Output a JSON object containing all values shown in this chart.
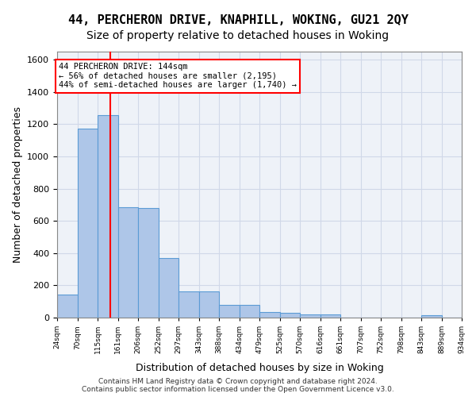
{
  "title_line1": "44, PERCHERON DRIVE, KNAPHILL, WOKING, GU21 2QY",
  "title_line2": "Size of property relative to detached houses in Woking",
  "xlabel": "Distribution of detached houses by size in Woking",
  "ylabel": "Number of detached properties",
  "footer_line1": "Contains HM Land Registry data © Crown copyright and database right 2024.",
  "footer_line2": "Contains public sector information licensed under the Open Government Licence v3.0.",
  "bar_edges": [
    24,
    70,
    115,
    161,
    206,
    252,
    297,
    343,
    388,
    434,
    479,
    525,
    570,
    616,
    661,
    707,
    752,
    798,
    843,
    889,
    934
  ],
  "bar_heights": [
    145,
    1170,
    1255,
    685,
    680,
    370,
    165,
    165,
    80,
    80,
    35,
    30,
    20,
    20,
    0,
    0,
    0,
    0,
    15,
    0
  ],
  "bar_color": "#aec6e8",
  "bar_edge_color": "#5b9bd5",
  "grid_color": "#d0d8e8",
  "bg_color": "#eef2f8",
  "vline_x": 144,
  "vline_color": "red",
  "annotation_line1": "44 PERCHERON DRIVE: 144sqm",
  "annotation_line2": "← 56% of detached houses are smaller (2,195)",
  "annotation_line3": "44% of semi-detached houses are larger (1,740) →",
  "annotation_box_color": "red",
  "ylim": [
    0,
    1650
  ],
  "yticks": [
    0,
    200,
    400,
    600,
    800,
    1000,
    1200,
    1400,
    1600
  ],
  "title_fontsize": 11,
  "subtitle_fontsize": 10,
  "ylabel_fontsize": 9,
  "xlabel_fontsize": 9
}
